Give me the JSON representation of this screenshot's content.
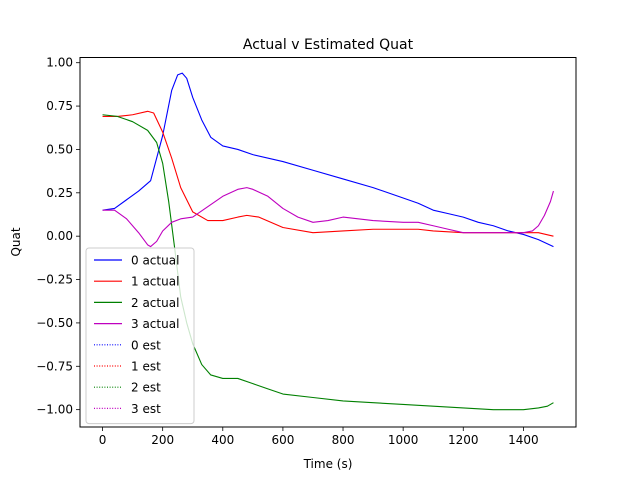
{
  "chart_data": {
    "type": "line",
    "title": "Actual v Estimated Quat",
    "xlabel": "Time (s)",
    "ylabel": "Quat",
    "xlim": [
      -75,
      1575
    ],
    "ylim": [
      -1.1,
      1.03
    ],
    "xticks": [
      0,
      200,
      400,
      600,
      800,
      1000,
      1200,
      1400
    ],
    "yticks": [
      -1.0,
      -0.75,
      -0.5,
      -0.25,
      0.0,
      0.25,
      0.5,
      0.75,
      1.0
    ],
    "xtick_labels": [
      "0",
      "200",
      "400",
      "600",
      "800",
      "1000",
      "1200",
      "1400"
    ],
    "ytick_labels": [
      "−1.00",
      "−0.75",
      "−0.50",
      "−0.25",
      "0.00",
      "0.25",
      "0.50",
      "0.75",
      "1.00"
    ],
    "grid": false,
    "legend_position": "lower-left",
    "series": [
      {
        "name": "0 actual",
        "color": "#0000ff",
        "style": "solid",
        "x": [
          0,
          40,
          80,
          120,
          160,
          200,
          230,
          250,
          265,
          280,
          300,
          330,
          360,
          400,
          450,
          500,
          600,
          700,
          800,
          900,
          1000,
          1050,
          1100,
          1150,
          1200,
          1250,
          1300,
          1350,
          1400,
          1450,
          1500
        ],
        "y": [
          0.15,
          0.16,
          0.21,
          0.26,
          0.32,
          0.58,
          0.84,
          0.93,
          0.94,
          0.91,
          0.8,
          0.67,
          0.57,
          0.52,
          0.5,
          0.47,
          0.43,
          0.38,
          0.33,
          0.28,
          0.22,
          0.19,
          0.15,
          0.13,
          0.11,
          0.08,
          0.06,
          0.03,
          0.01,
          -0.02,
          -0.06
        ]
      },
      {
        "name": "1 actual",
        "color": "#ff0000",
        "style": "solid",
        "x": [
          0,
          50,
          100,
          150,
          170,
          200,
          230,
          260,
          300,
          350,
          400,
          450,
          480,
          520,
          600,
          700,
          800,
          900,
          1000,
          1050,
          1100,
          1200,
          1300,
          1400,
          1450,
          1500
        ],
        "y": [
          0.69,
          0.69,
          0.7,
          0.72,
          0.71,
          0.6,
          0.45,
          0.28,
          0.14,
          0.09,
          0.09,
          0.11,
          0.12,
          0.11,
          0.05,
          0.02,
          0.03,
          0.04,
          0.04,
          0.04,
          0.03,
          0.02,
          0.02,
          0.02,
          0.02,
          0.0
        ]
      },
      {
        "name": "2 actual",
        "color": "#008000",
        "style": "solid",
        "x": [
          0,
          50,
          100,
          150,
          180,
          200,
          220,
          240,
          260,
          280,
          300,
          330,
          360,
          400,
          450,
          500,
          550,
          600,
          700,
          800,
          900,
          1000,
          1100,
          1200,
          1300,
          1400,
          1450,
          1480,
          1500
        ],
        "y": [
          0.7,
          0.69,
          0.66,
          0.61,
          0.54,
          0.42,
          0.2,
          -0.07,
          -0.35,
          -0.5,
          -0.62,
          -0.74,
          -0.8,
          -0.82,
          -0.82,
          -0.85,
          -0.88,
          -0.91,
          -0.93,
          -0.95,
          -0.96,
          -0.97,
          -0.98,
          -0.99,
          -1.0,
          -1.0,
          -0.99,
          -0.98,
          -0.96
        ]
      },
      {
        "name": "3 actual",
        "color": "#bf00bf",
        "style": "solid",
        "x": [
          0,
          40,
          80,
          120,
          150,
          160,
          180,
          200,
          230,
          260,
          300,
          350,
          400,
          450,
          480,
          500,
          550,
          600,
          650,
          700,
          750,
          800,
          850,
          900,
          1000,
          1050,
          1100,
          1150,
          1200,
          1300,
          1350,
          1400,
          1430,
          1450,
          1470,
          1490,
          1500
        ],
        "y": [
          0.15,
          0.15,
          0.1,
          0.02,
          -0.05,
          -0.06,
          -0.03,
          0.03,
          0.08,
          0.1,
          0.11,
          0.17,
          0.23,
          0.27,
          0.28,
          0.27,
          0.23,
          0.16,
          0.11,
          0.08,
          0.09,
          0.11,
          0.1,
          0.09,
          0.08,
          0.08,
          0.06,
          0.04,
          0.02,
          0.02,
          0.02,
          0.02,
          0.03,
          0.06,
          0.12,
          0.2,
          0.26
        ]
      },
      {
        "name": "0 est",
        "color": "#0000ff",
        "style": "dotted",
        "x": [],
        "y": []
      },
      {
        "name": "1 est",
        "color": "#ff0000",
        "style": "dotted",
        "x": [],
        "y": []
      },
      {
        "name": "2 est",
        "color": "#008000",
        "style": "dotted",
        "x": [],
        "y": []
      },
      {
        "name": "3 est",
        "color": "#bf00bf",
        "style": "dotted",
        "x": [],
        "y": []
      }
    ]
  }
}
